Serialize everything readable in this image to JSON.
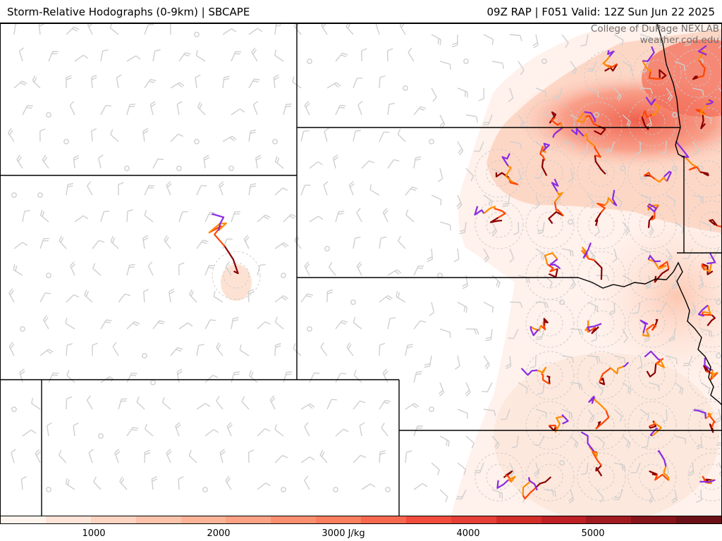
{
  "header": {
    "title_left": "Storm-Relative Hodographs (0-9km) | SBCAPE",
    "title_right": "09Z RAP | F051 Valid: 12Z Sun Jun 22 2025"
  },
  "credit": {
    "line1": "College of DuPage NEXLAB",
    "line2": "weather.cod.edu"
  },
  "colorbar": {
    "colors": [
      "#fff3ed",
      "#fee4d8",
      "#fdd4c2",
      "#fcc3ab",
      "#fcb398",
      "#fca285",
      "#fb9070",
      "#fa7f5e",
      "#f6694f",
      "#f14c3d",
      "#e53f36",
      "#d22d27",
      "#be2024",
      "#a11a1f",
      "#86141b",
      "#6b1016"
    ],
    "tick_labels": [
      {
        "text": "1000"
      },
      {
        "text": "2000"
      },
      {
        "text": "3000 J/kg"
      },
      {
        "text": "4000"
      },
      {
        "text": "5000"
      }
    ]
  },
  "legend_colors": {
    "hodo_0_3": "#8b0000",
    "hodo_3_6": "#ff8c00",
    "hodo_6_9": "#8a2be2",
    "hodo_low": "#ff4500",
    "barb": "#cfcfcf",
    "boundary": "#000000"
  }
}
